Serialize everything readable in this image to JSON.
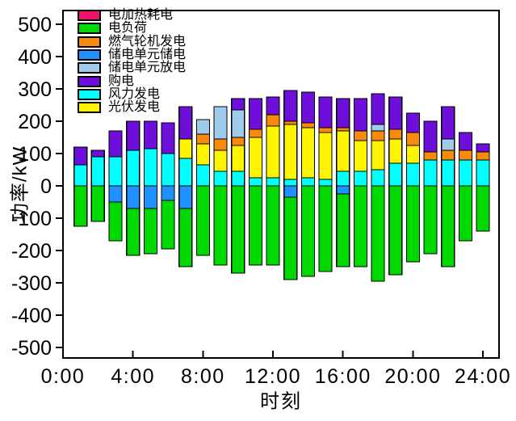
{
  "figure": {
    "y_axis_title": "功率/kW",
    "x_axis_title": "时刻",
    "y_ticks": [
      {
        "value": 500,
        "label": "500"
      },
      {
        "value": 400,
        "label": "400"
      },
      {
        "value": 300,
        "label": "300"
      },
      {
        "value": 200,
        "label": "200"
      },
      {
        "value": 100,
        "label": "100"
      },
      {
        "value": 0,
        "label": "0"
      },
      {
        "value": -100,
        "label": "-100"
      },
      {
        "value": -200,
        "label": "-200"
      },
      {
        "value": -300,
        "label": "-300"
      },
      {
        "value": -400,
        "label": "-400"
      },
      {
        "value": -500,
        "label": "-500"
      }
    ],
    "x_ticks": [
      {
        "hour": 0,
        "label": "0:00"
      },
      {
        "hour": 4,
        "label": "4:00"
      },
      {
        "hour": 8,
        "label": "8:00"
      },
      {
        "hour": 12,
        "label": "12:00"
      },
      {
        "hour": 16,
        "label": "16:00"
      },
      {
        "hour": 20,
        "label": "20:00"
      },
      {
        "hour": 24,
        "label": "24:00"
      }
    ]
  },
  "legend": {
    "order": [
      "电加热耗电",
      "电负荷",
      "燃气轮机发电",
      "储电单元储电",
      "储电单元放电",
      "购电",
      "风力发电",
      "光伏发电"
    ]
  },
  "chart_data": {
    "type": "bar",
    "stacked": true,
    "title": "",
    "xlabel": "时刻",
    "ylabel": "功率/kW",
    "ylim": [
      -500,
      500
    ],
    "xlim_hours": [
      0,
      24.9
    ],
    "grid": false,
    "legend_position": "top-left-inside",
    "x_hours": [
      1,
      2,
      3,
      4,
      5,
      6,
      7,
      8,
      9,
      10,
      11,
      12,
      13,
      14,
      15,
      16,
      17,
      18,
      19,
      20,
      21,
      22,
      23,
      24
    ],
    "series": [
      {
        "name": "电加热耗电",
        "color": "#ED1569",
        "values": [
          0,
          0,
          0,
          0,
          0,
          0,
          0,
          0,
          0,
          0,
          0,
          0,
          0,
          0,
          0,
          0,
          0,
          0,
          0,
          0,
          0,
          0,
          0,
          0
        ]
      },
      {
        "name": "电负荷",
        "color": "#00D900",
        "values": [
          -125,
          -110,
          -120,
          -145,
          -140,
          -150,
          -180,
          -215,
          -245,
          -270,
          -245,
          -245,
          -255,
          -280,
          -265,
          -225,
          -250,
          -295,
          -275,
          -235,
          -210,
          -250,
          -170,
          -140
        ]
      },
      {
        "name": "燃气轮机发电",
        "color": "#F98A0C",
        "values": [
          0,
          0,
          0,
          0,
          0,
          0,
          0,
          30,
          35,
          25,
          25,
          35,
          10,
          15,
          15,
          10,
          30,
          30,
          30,
          40,
          25,
          30,
          30,
          25
        ]
      },
      {
        "name": "储电单元储电",
        "color": "#1E90FF",
        "values": [
          0,
          0,
          -50,
          -70,
          -70,
          -45,
          -70,
          0,
          0,
          0,
          0,
          0,
          -35,
          0,
          0,
          -25,
          0,
          0,
          0,
          0,
          0,
          0,
          0,
          0
        ]
      },
      {
        "name": "储电单元放电",
        "color": "#9FCBEC",
        "values": [
          0,
          0,
          0,
          0,
          0,
          0,
          0,
          45,
          100,
          85,
          0,
          0,
          0,
          0,
          0,
          0,
          0,
          20,
          0,
          0,
          0,
          35,
          0,
          0
        ]
      },
      {
        "name": "购电",
        "color": "#6E0EDA",
        "values": [
          55,
          20,
          80,
          90,
          85,
          95,
          100,
          0,
          0,
          35,
          95,
          55,
          95,
          95,
          95,
          90,
          100,
          95,
          100,
          60,
          95,
          100,
          55,
          25
        ]
      },
      {
        "name": "风力发电",
        "color": "#00FFFF",
        "values": [
          65,
          90,
          90,
          110,
          115,
          100,
          85,
          65,
          45,
          45,
          25,
          25,
          20,
          25,
          20,
          45,
          45,
          50,
          70,
          70,
          80,
          80,
          80,
          80
        ]
      },
      {
        "name": "光伏发电",
        "color": "#FEF400",
        "values": [
          0,
          0,
          0,
          0,
          0,
          0,
          60,
          65,
          65,
          80,
          125,
          160,
          170,
          155,
          145,
          125,
          95,
          90,
          75,
          55,
          0,
          0,
          0,
          0
        ]
      }
    ],
    "positive_stack_order": [
      "风力发电",
      "光伏发电",
      "燃气轮机发电",
      "储电单元放电",
      "购电"
    ],
    "negative_stack_order": [
      "储电单元储电",
      "电负荷",
      "电加热耗电"
    ]
  }
}
